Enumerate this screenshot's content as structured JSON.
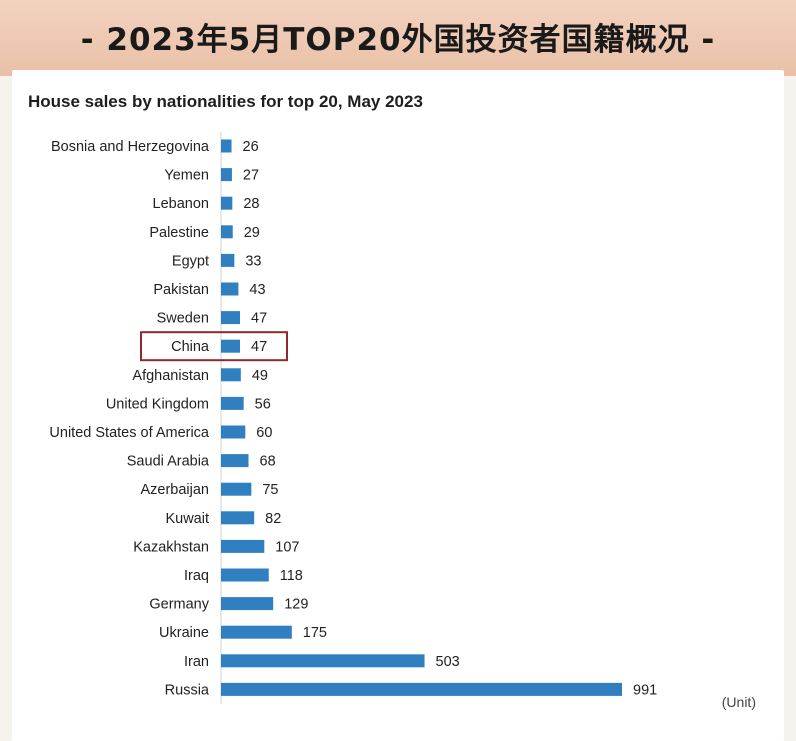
{
  "banner": {
    "title": "- 2023年5月TOP20外国投资者国籍概况 -"
  },
  "colors": {
    "bar": "#2f7fc1",
    "highlight_box": "#8b2b2b",
    "banner_bg": "#efc9b3"
  },
  "chart_data": {
    "type": "bar",
    "orientation": "horizontal",
    "title": "House sales by nationalities for top 20, May 2023",
    "unit": "(Unit)",
    "highlight": "China",
    "categories": [
      "Bosnia and Herzegovina",
      "Yemen",
      "Lebanon",
      "Palestine",
      "Egypt",
      "Pakistan",
      "Sweden",
      "China",
      "Afghanistan",
      "United Kingdom",
      "United States of America",
      "Saudi Arabia",
      "Azerbaijan",
      "Kuwait",
      "Kazakhstan",
      "Iraq",
      "Germany",
      "Ukraine",
      "Iran",
      "Russia"
    ],
    "values": [
      26,
      27,
      28,
      29,
      33,
      43,
      47,
      47,
      49,
      56,
      60,
      68,
      75,
      82,
      107,
      118,
      129,
      175,
      503,
      991
    ],
    "grid": false,
    "legend": "none"
  }
}
